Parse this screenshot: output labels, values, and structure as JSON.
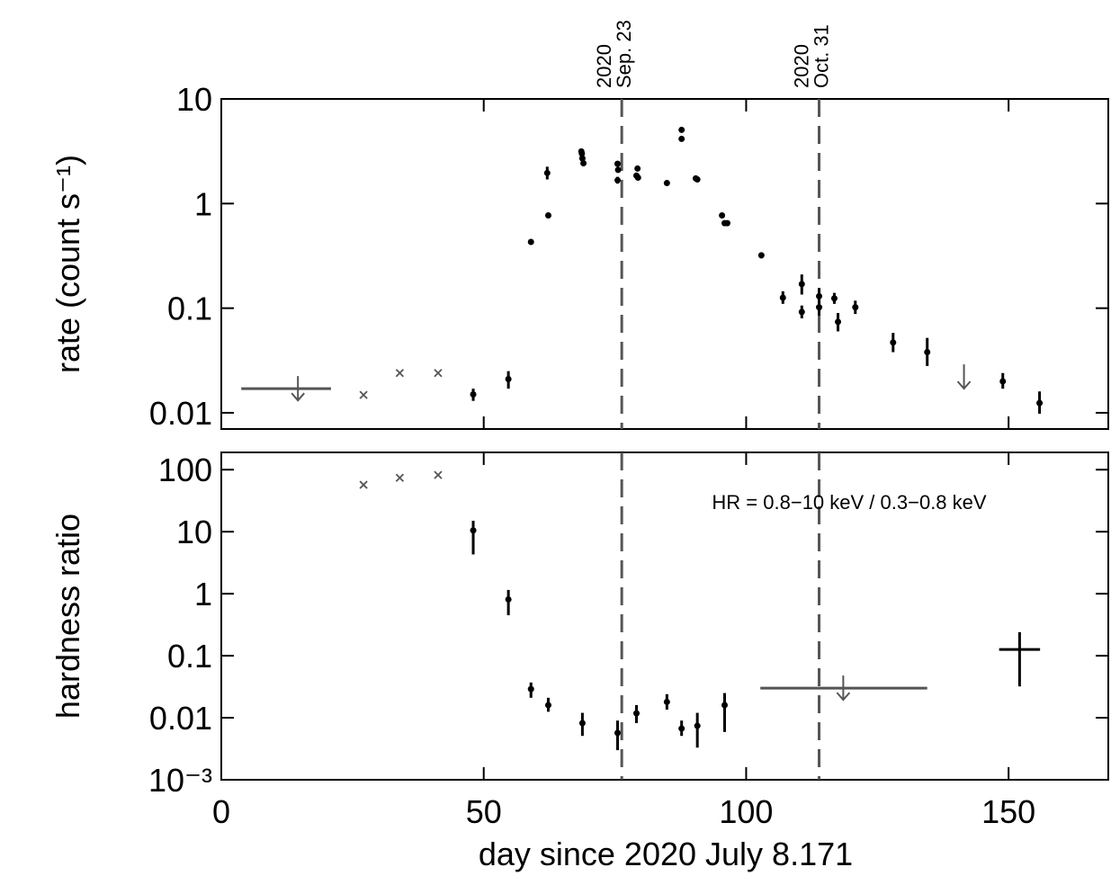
{
  "chart_data": [
    {
      "type": "scatter",
      "ylog": true,
      "ylabel": "rate (count s⁻¹)",
      "xlim": [
        0,
        169
      ],
      "ylim": [
        0.007,
        10
      ],
      "xticks": [
        0,
        50,
        100,
        150
      ],
      "yticks": [
        0.01,
        0.1,
        1,
        10
      ],
      "vlines": [
        {
          "x": 76.3,
          "label": [
            "2020",
            "Sep. 23"
          ]
        },
        {
          "x": 113.9,
          "label": [
            "2020",
            "Oct. 31"
          ]
        }
      ],
      "series": [
        {
          "marker": "dot",
          "color": "#000000",
          "x": [
            48.0,
            54.7,
            59.0,
            62.1,
            62.3,
            68.6,
            68.7,
            68.8,
            69.0,
            75.5,
            75.6,
            75.5,
            79.1,
            79.4,
            79.3,
            84.9,
            87.7,
            87.7,
            90.4,
            90.7,
            95.4,
            95.9,
            96.4,
            102.9,
            107.0,
            110.6,
            110.6,
            113.9,
            113.9,
            116.8,
            117.5,
            120.8,
            128.0,
            134.5,
            148.9,
            155.9
          ],
          "values": [
            0.015,
            0.021,
            0.43,
            1.96,
            0.77,
            3.15,
            3.0,
            2.7,
            2.43,
            2.4,
            2.1,
            1.67,
            1.85,
            1.77,
            2.16,
            1.57,
            5.06,
            4.15,
            1.74,
            1.7,
            0.77,
            0.65,
            0.65,
            0.32,
            0.126,
            0.17,
            0.092,
            0.13,
            0.102,
            0.124,
            0.074,
            0.102,
            0.047,
            0.038,
            0.02,
            0.0124
          ],
          "ylow": [
            0.013,
            0.017,
            0.41,
            1.7,
            0.74,
            3.0,
            2.85,
            2.55,
            2.3,
            2.3,
            2.0,
            1.55,
            1.75,
            1.68,
            2.05,
            1.52,
            4.85,
            3.95,
            1.67,
            1.63,
            0.74,
            0.62,
            0.62,
            0.3,
            0.11,
            0.135,
            0.08,
            0.11,
            0.085,
            0.11,
            0.06,
            0.088,
            0.038,
            0.028,
            0.017,
            0.0098
          ],
          "yhigh": [
            0.017,
            0.025,
            0.45,
            2.25,
            0.8,
            3.3,
            3.15,
            2.85,
            2.56,
            2.5,
            2.2,
            1.8,
            1.95,
            1.86,
            2.27,
            1.62,
            5.27,
            4.35,
            1.81,
            1.77,
            0.8,
            0.68,
            0.68,
            0.34,
            0.145,
            0.21,
            0.106,
            0.155,
            0.12,
            0.14,
            0.09,
            0.118,
            0.058,
            0.052,
            0.024,
            0.016
          ]
        },
        {
          "marker": "cross",
          "color": "#555555",
          "x": [
            27.1,
            34.0,
            41.3
          ],
          "values": [
            0.0148,
            0.024,
            0.024
          ]
        },
        {
          "marker": "upper_limit",
          "color": "#555555",
          "x": [
            14.6,
            141.5
          ],
          "values": [
            0.017,
            0.022
          ],
          "xmin": [
            3.8,
            null
          ],
          "xmax": [
            20.9,
            null
          ]
        }
      ]
    },
    {
      "type": "scatter",
      "ylog": true,
      "ylabel": "hardness ratio",
      "xlabel": "day since 2020 July 8.171",
      "annotation": "HR = 0.8−10 keV / 0.3−0.8 keV",
      "xlim": [
        0,
        169
      ],
      "ylim": [
        0.001,
        190
      ],
      "xticks": [
        0,
        50,
        100,
        150
      ],
      "yticks": [
        {
          "value": 0.001,
          "label": "10⁻³"
        },
        0.01,
        0.1,
        1,
        10,
        100
      ],
      "series": [
        {
          "marker": "dot",
          "color": "#000000",
          "x": [
            48.0,
            54.7,
            59.0,
            62.3,
            68.8,
            75.5,
            79.1,
            84.9,
            87.7,
            90.7,
            95.9
          ],
          "values": [
            10.5,
            0.81,
            0.029,
            0.016,
            0.0082,
            0.0057,
            0.0118,
            0.018,
            0.0067,
            0.0074,
            0.016
          ],
          "ylow": [
            4.3,
            0.45,
            0.021,
            0.0125,
            0.0051,
            0.003,
            0.0082,
            0.0135,
            0.0051,
            0.0033,
            0.0059
          ],
          "yhigh": [
            15,
            1.15,
            0.037,
            0.021,
            0.012,
            0.009,
            0.016,
            0.024,
            0.009,
            0.012,
            0.025
          ]
        },
        {
          "marker": "cross",
          "color": "#555555",
          "x": [
            27.1,
            34.0,
            41.3
          ],
          "values": [
            57,
            74,
            82
          ]
        },
        {
          "marker": "upper_limit",
          "color": "#555555",
          "x": [
            118.5
          ],
          "values": [
            0.03
          ],
          "xmin": [
            102.7
          ],
          "xmax": [
            134.5
          ]
        },
        {
          "marker": "error_cross",
          "color": "#000000",
          "x": [
            152.1
          ],
          "values": [
            0.126
          ],
          "xmin": [
            148.2
          ],
          "xmax": [
            156.0
          ],
          "ylow": [
            0.032
          ],
          "yhigh": [
            0.24
          ]
        }
      ]
    }
  ]
}
